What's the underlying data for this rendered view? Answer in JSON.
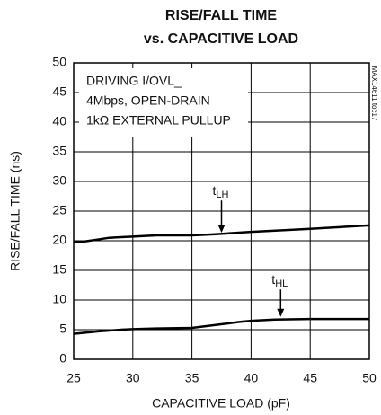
{
  "chart_data": {
    "type": "line",
    "title": "RISE/FALL TIME",
    "subtitle": "vs. CAPACITIVE LOAD",
    "x_label": "CAPACITIVE LOAD (pF)",
    "y_label": "RISE/FALL TIME (ns)",
    "annotations": [
      "DRIVING I/OVL_",
      "4Mbps, OPEN-DRAIN",
      "1kΩ EXTERNAL PULLUP"
    ],
    "figure_id": "MAX14611 toc17",
    "xlim": [
      25,
      50
    ],
    "xticks": [
      25,
      30,
      35,
      40,
      45,
      50
    ],
    "ylim": [
      0,
      50
    ],
    "yticks": [
      0,
      5,
      10,
      15,
      20,
      25,
      30,
      35,
      40,
      45,
      50
    ],
    "grid": true,
    "series": [
      {
        "label": "t",
        "subscript": "LH",
        "color": "#000000",
        "x": [
          25,
          26,
          27,
          28,
          29,
          30,
          32,
          35,
          37,
          40,
          45,
          50
        ],
        "values": [
          19.7,
          19.9,
          20.2,
          20.5,
          20.6,
          20.7,
          20.9,
          20.9,
          21.1,
          21.5,
          22.0,
          22.6
        ]
      },
      {
        "label": "t",
        "subscript": "HL",
        "color": "#000000",
        "x": [
          25,
          27,
          29,
          30,
          32,
          35,
          37,
          39,
          40,
          42,
          45,
          50
        ],
        "values": [
          4.3,
          4.7,
          5.0,
          5.1,
          5.2,
          5.3,
          5.8,
          6.3,
          6.5,
          6.7,
          6.8,
          6.8
        ]
      }
    ]
  }
}
